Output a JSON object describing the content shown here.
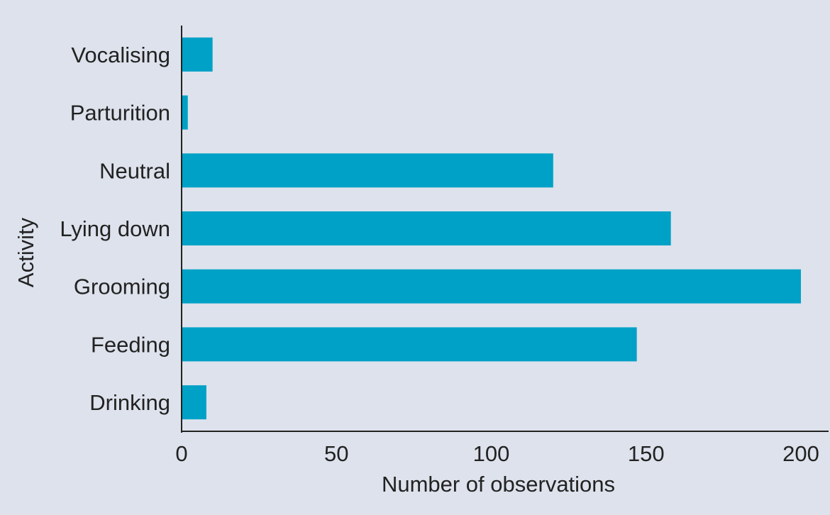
{
  "chart_data": {
    "type": "bar",
    "orientation": "horizontal",
    "categories": [
      "Drinking",
      "Feeding",
      "Grooming",
      "Lying down",
      "Neutral",
      "Parturition",
      "Vocalising"
    ],
    "values": [
      8,
      147,
      200,
      158,
      120,
      2,
      10
    ],
    "xlabel": "Number of observations",
    "ylabel": "Activity",
    "xlim": [
      0,
      200
    ],
    "xticks": [
      0,
      50,
      100,
      150,
      200
    ],
    "grid": false,
    "legend": "none",
    "bar_color": "#00a1c6",
    "background_color": "#dde2ec"
  }
}
